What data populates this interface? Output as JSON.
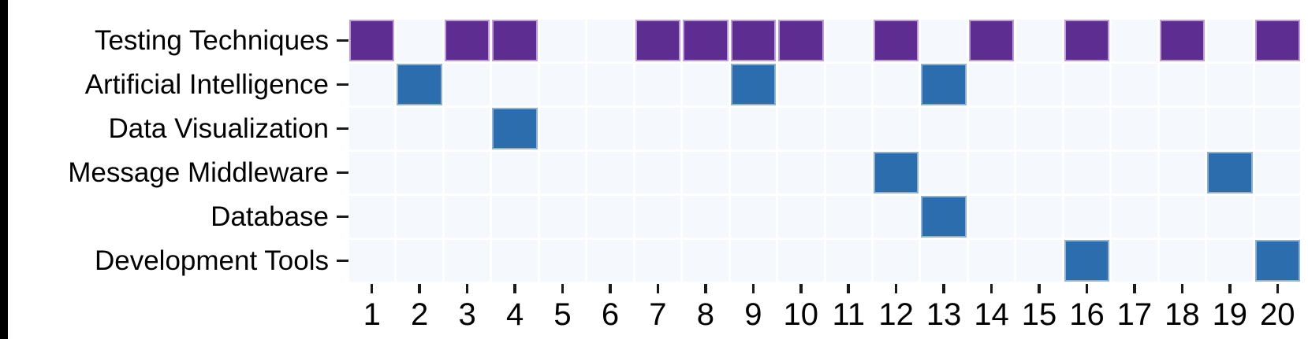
{
  "chart_data": {
    "type": "heatmap",
    "title": "",
    "xlabel": "",
    "ylabel": "",
    "legend": "none",
    "grid_gap_color": "#ffffff",
    "empty_cell_color": "#f5f8fc",
    "text_color": "#000000",
    "rows": [
      "Testing Techniques",
      "Artificial Intelligence",
      "Data Visualization",
      "Message Middleware",
      "Database",
      "Development Tools"
    ],
    "columns": [
      "1",
      "2",
      "3",
      "4",
      "5",
      "6",
      "7",
      "8",
      "9",
      "10",
      "11",
      "12",
      "13",
      "14",
      "15",
      "16",
      "17",
      "18",
      "19",
      "20"
    ],
    "series": [
      {
        "row": "Testing Techniques",
        "filled_columns": [
          1,
          3,
          4,
          7,
          8,
          9,
          10,
          12,
          14,
          16,
          18,
          20
        ],
        "fill_color": "#5e2d92",
        "edge_color": "#bf9cd9"
      },
      {
        "row": "Artificial Intelligence",
        "filled_columns": [
          2,
          9,
          13
        ],
        "fill_color": "#2b6dad",
        "edge_color": "#8fb2d4"
      },
      {
        "row": "Data Visualization",
        "filled_columns": [
          4
        ],
        "fill_color": "#2b6dad",
        "edge_color": "#8fb2d4"
      },
      {
        "row": "Message Middleware",
        "filled_columns": [
          12,
          19
        ],
        "fill_color": "#2b6dad",
        "edge_color": "#8fb2d4"
      },
      {
        "row": "Database",
        "filled_columns": [
          13
        ],
        "fill_color": "#2b6dad",
        "edge_color": "#8fb2d4"
      },
      {
        "row": "Development Tools",
        "filled_columns": [
          16,
          20
        ],
        "fill_color": "#2b6dad",
        "edge_color": "#8fb2d4"
      }
    ]
  }
}
